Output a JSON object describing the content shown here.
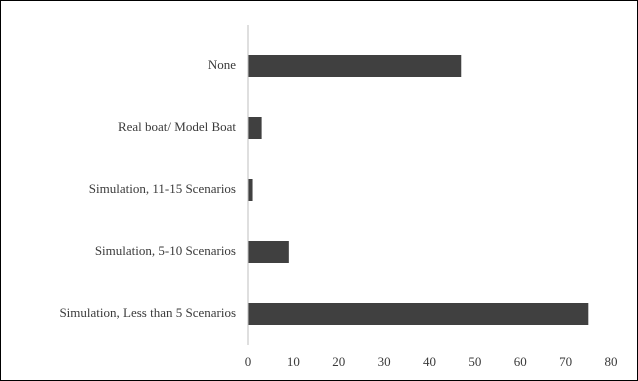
{
  "chart_data": {
    "type": "bar",
    "orientation": "horizontal",
    "categories": [
      "None",
      "Real boat/ Model Boat",
      "Simulation, 11-15 Scenarios",
      "Simulation, 5-10 Scenarios",
      "Simulation, Less than 5 Scenarios"
    ],
    "values": [
      47,
      3,
      1,
      9,
      75
    ],
    "xlim": [
      0,
      80
    ],
    "xticks": [
      0,
      10,
      20,
      30,
      40,
      50,
      60,
      70,
      80
    ],
    "title": "",
    "xlabel": "",
    "ylabel": "",
    "grid": false,
    "legend": "none",
    "colors": {
      "bar": "#404040",
      "axis": "#bfbfbf",
      "text": "#3a3a3a"
    }
  }
}
